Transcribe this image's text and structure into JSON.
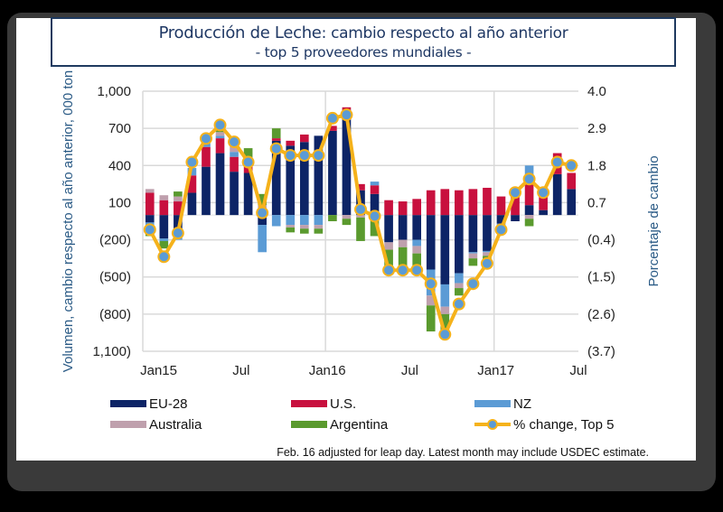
{
  "header": {
    "title_main": "Producción de Leche",
    "title_rest": ": cambio respecto al año anterior",
    "subtitle": "- top 5 proveedores mundiales -"
  },
  "chart_data": {
    "type": "bar",
    "stacked": true,
    "title": "Producción de Leche: cambio respecto al año anterior - top 5 proveedores mundiales -",
    "ylabel": "Volumen, cambio respecto al año anterior, 000 ton",
    "y2label": "Porcentaje de cambio",
    "ylim": [
      -1100,
      1000
    ],
    "y2lim": [
      -3.7,
      4.0
    ],
    "yticks": [
      "1,000",
      "700",
      "400",
      "100",
      "(200)",
      "(500)",
      "(800)",
      "1,100)"
    ],
    "ytick_values": [
      1000,
      700,
      400,
      100,
      -200,
      -500,
      -800,
      -1100
    ],
    "y2ticks": [
      "4.0",
      "2.9",
      "1.8",
      "0.7",
      "(0.4)",
      "(1.5)",
      "(2.6)",
      "(3.7)"
    ],
    "y2tick_values": [
      4.0,
      2.9,
      1.8,
      0.7,
      -0.4,
      -1.5,
      -2.6,
      -3.7
    ],
    "xtick_labels": [
      "Jan15",
      "Jul",
      "Jan16",
      "Jul",
      "Jan17",
      "Jul"
    ],
    "grid": true,
    "legend_position": "bottom",
    "note": "Feb. 16 adjusted for leap day. Latest month may include USDEC estimate.",
    "categories": [
      "Dec14",
      "Jan15",
      "Feb15",
      "Mar15",
      "Apr15",
      "May15",
      "Jun15",
      "Jul15",
      "Aug15",
      "Sep15",
      "Oct15",
      "Nov15",
      "Dec15",
      "Jan16",
      "Feb16",
      "Mar16",
      "Apr16",
      "May16",
      "Jun16",
      "Jul16",
      "Aug16",
      "Sep16",
      "Oct16",
      "Nov16",
      "Dec16",
      "Jan17",
      "Feb17",
      "Mar17",
      "Apr17",
      "May17",
      "Jun17"
    ],
    "series": [
      {
        "name": "EU-28",
        "color": "#0d2466",
        "values": [
          -60,
          -190,
          -180,
          180,
          390,
          500,
          350,
          340,
          -80,
          600,
          560,
          590,
          640,
          680,
          850,
          200,
          170,
          -220,
          -200,
          -200,
          -440,
          -560,
          -470,
          -300,
          -290,
          -70,
          -50,
          80,
          40,
          330,
          210
        ]
      },
      {
        "name": "U.S.",
        "color": "#c8103e",
        "values": [
          180,
          120,
          110,
          140,
          160,
          120,
          120,
          80,
          50,
          20,
          40,
          60,
          0,
          40,
          20,
          50,
          70,
          120,
          110,
          130,
          200,
          210,
          200,
          210,
          220,
          150,
          210,
          180,
          140,
          170,
          130
        ]
      },
      {
        "name": "NZ",
        "color": "#5b9bd5",
        "values": [
          -20,
          -20,
          -20,
          60,
          30,
          20,
          40,
          10,
          -220,
          -90,
          -80,
          -80,
          -80,
          0,
          0,
          0,
          30,
          0,
          0,
          -50,
          -210,
          -180,
          -80,
          -10,
          -10,
          -10,
          0,
          140,
          0,
          0,
          0
        ]
      },
      {
        "name": "Australia",
        "color": "#bfa0ad",
        "values": [
          30,
          40,
          40,
          0,
          0,
          30,
          50,
          30,
          30,
          0,
          -20,
          -30,
          -30,
          0,
          -30,
          -20,
          0,
          -60,
          -60,
          -60,
          -80,
          -60,
          -40,
          -40,
          -30,
          0,
          0,
          -30,
          0,
          0,
          0
        ]
      },
      {
        "name": "Argentina",
        "color": "#5a9a2e",
        "values": [
          -90,
          -60,
          40,
          0,
          0,
          90,
          40,
          80,
          90,
          80,
          -40,
          -40,
          -40,
          -50,
          -50,
          -190,
          -170,
          -160,
          -200,
          -150,
          -210,
          -140,
          -60,
          -60,
          -50,
          -40,
          0,
          -60,
          0,
          0,
          0
        ]
      }
    ],
    "line_series": {
      "name": "% change, Top 5",
      "color": "#f5b21b",
      "marker_color": "#5b9bd5",
      "axis": "secondary",
      "values": [
        -0.1,
        -0.9,
        -0.2,
        1.9,
        2.6,
        3.0,
        2.5,
        1.9,
        0.4,
        2.3,
        2.1,
        2.1,
        2.1,
        3.2,
        3.3,
        0.5,
        0.3,
        -1.3,
        -1.3,
        -1.3,
        -1.7,
        -3.2,
        -2.3,
        -1.7,
        -1.1,
        -0.1,
        1.0,
        1.4,
        1.0,
        1.9,
        1.8
      ]
    }
  },
  "legend": [
    {
      "label": "EU-28",
      "kind": "bar",
      "color": "#0d2466"
    },
    {
      "label": "U.S.",
      "kind": "bar",
      "color": "#c8103e"
    },
    {
      "label": "NZ",
      "kind": "bar",
      "color": "#5b9bd5"
    },
    {
      "label": "Australia",
      "kind": "bar",
      "color": "#bfa0ad"
    },
    {
      "label": "Argentina",
      "kind": "bar",
      "color": "#5a9a2e"
    },
    {
      "label": "% change, Top 5",
      "kind": "line",
      "color": "#f5b21b"
    }
  ]
}
